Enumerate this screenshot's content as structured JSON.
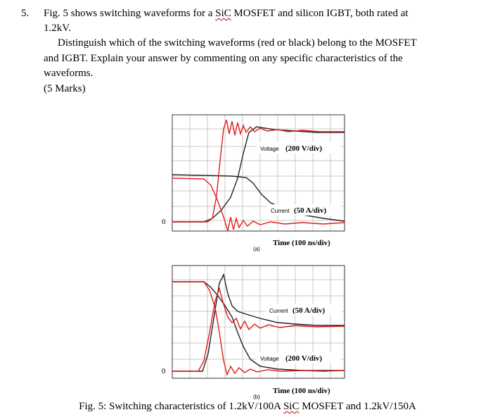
{
  "question": {
    "number": "5.",
    "line1_pre": "Fig. 5 shows switching waveforms for a ",
    "line1_sic": "SiC",
    "line1_post": " MOSFET and silicon IGBT, both rated at",
    "line2": "1.2kV.",
    "line3": "Distinguish which of the switching waveforms (red or black) belong to the MOSFET",
    "line4": "and IGBT. Explain your answer by commenting on any specific characteristics of the",
    "line5": "waveforms.",
    "marks": "(5 Marks)"
  },
  "figure_a": {
    "zero_label": "0",
    "voltage_label_small": "Voltage",
    "voltage_label": "(200 V/div)",
    "current_label_small": "Current",
    "current_label": "(50 A/div)",
    "time_label": "Time (100 ns/div)",
    "sub_label": "(a)"
  },
  "figure_b": {
    "zero_label": "0",
    "current_label_small": "Current",
    "current_label": "(50 A/div)",
    "voltage_label_small": "Voltage",
    "voltage_label": "(200 V/div)",
    "time_label": "Time (100 ns/div)",
    "sub_label": "(b)"
  },
  "caption": {
    "pre": "Fig. 5: Switching characteristics of 1.2kV/100A ",
    "sic": "SiC",
    "post": " MOSFET and 1.2kV/150A"
  },
  "colors": {
    "red": "#e01b1b",
    "black": "#222222",
    "grid": "#c8c8c8"
  }
}
